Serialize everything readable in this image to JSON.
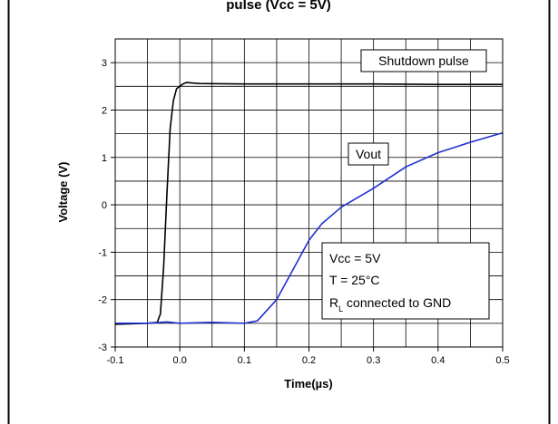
{
  "header_fragment": "pulse (Vcc = 5V)",
  "chart_data": {
    "type": "line",
    "xlabel": "Time(µs)",
    "ylabel": "Voltage (V)",
    "xlim": [
      -0.1,
      0.5
    ],
    "ylim": [
      -3,
      3.5
    ],
    "x_ticks": [
      -0.1,
      0,
      0.1,
      0.2,
      0.3,
      0.4,
      0.5
    ],
    "x_tick_labels": [
      "-0.1",
      "0.0",
      "0.1",
      "0.2",
      "0.3",
      "0.4",
      "0.5"
    ],
    "y_ticks": [
      -3,
      -2,
      -1,
      0,
      1,
      2,
      3
    ],
    "y_tick_labels": [
      "-3",
      "-2",
      "-1",
      "0",
      "1",
      "2",
      "3"
    ],
    "grid": true,
    "series": [
      {
        "name": "Shutdown pulse",
        "color": "#000000",
        "x": [
          -0.1,
          -0.05,
          -0.035,
          -0.03,
          -0.025,
          -0.02,
          -0.015,
          -0.01,
          -0.005,
          0.0,
          0.005,
          0.01,
          0.03,
          0.1,
          0.2,
          0.3,
          0.4,
          0.5
        ],
        "y": [
          -2.52,
          -2.5,
          -2.48,
          -2.3,
          -1.3,
          0.2,
          1.6,
          2.2,
          2.45,
          2.5,
          2.55,
          2.58,
          2.56,
          2.55,
          2.55,
          2.55,
          2.54,
          2.54
        ]
      },
      {
        "name": "Vout",
        "color": "#1f2fd0",
        "x": [
          -0.1,
          -0.05,
          -0.02,
          0.0,
          0.05,
          0.1,
          0.12,
          0.13,
          0.15,
          0.17,
          0.2,
          0.22,
          0.25,
          0.3,
          0.35,
          0.4,
          0.45,
          0.5
        ],
        "y": [
          -2.5,
          -2.5,
          -2.47,
          -2.5,
          -2.48,
          -2.5,
          -2.45,
          -2.3,
          -2.0,
          -1.5,
          -0.75,
          -0.4,
          -0.05,
          0.35,
          0.8,
          1.1,
          1.32,
          1.52
        ]
      }
    ],
    "annotations": {
      "shutdown_box": "Shutdown pulse",
      "vout_box": "Vout",
      "conditions": {
        "line1": "Vcc = 5V",
        "line2": "T = 25°C",
        "r_main": "R",
        "r_sub": "L",
        "r_rest": " connected to GND"
      }
    }
  }
}
